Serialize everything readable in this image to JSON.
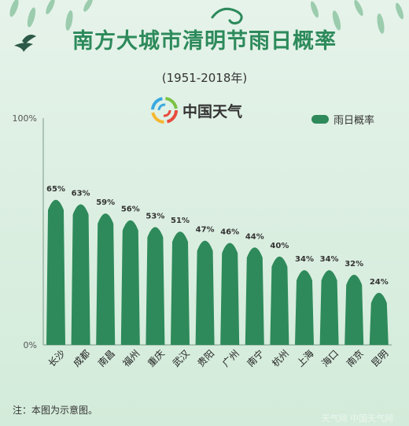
{
  "header": {
    "title": "南方大城市清明节雨日概率",
    "subtitle": "(1951-2018年)",
    "brand": "中国天气"
  },
  "footer": {
    "note": "注：本图为示意图。",
    "watermark": "天气网 中国天气网"
  },
  "colors": {
    "bar": "#2e8a5a",
    "title": "#2d8a5b",
    "background": "#dcefe2"
  },
  "chart_data": {
    "type": "bar",
    "title": "南方大城市清明节雨日概率",
    "subtitle": "(1951-2018年)",
    "categories": [
      "长沙",
      "成都",
      "南昌",
      "福州",
      "重庆",
      "武汉",
      "贵阳",
      "广州",
      "南宁",
      "杭州",
      "上海",
      "海口",
      "南京",
      "昆明"
    ],
    "series": [
      {
        "name": "雨日概率",
        "values": [
          65,
          63,
          59,
          56,
          53,
          51,
          47,
          46,
          44,
          40,
          34,
          34,
          32,
          24
        ]
      }
    ],
    "value_labels": [
      "65%",
      "63%",
      "59%",
      "56%",
      "53%",
      "51%",
      "47%",
      "46%",
      "44%",
      "40%",
      "34%",
      "34%",
      "32%",
      "24%"
    ],
    "ylim": [
      0,
      100
    ],
    "y_ticks": [
      "0%",
      "100%"
    ],
    "legend": "top-right",
    "grid": false
  }
}
